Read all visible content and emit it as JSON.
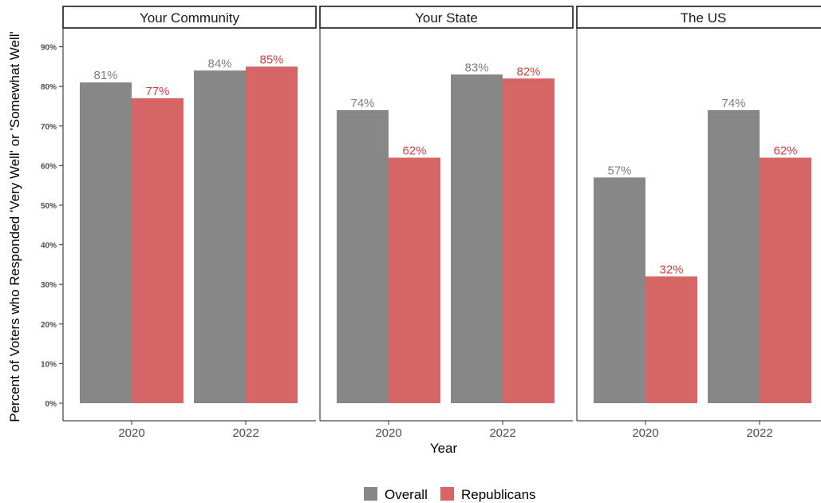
{
  "chart_data": {
    "type": "bar",
    "ylabel": "Percent of Voters who Responded 'Very Well' or 'Somewhat Well'",
    "xlabel": "Year",
    "ylim": [
      0,
      95
    ],
    "yticks": [
      "0%",
      "10%",
      "20%",
      "30%",
      "40%",
      "50%",
      "60%",
      "70%",
      "80%",
      "90%"
    ],
    "categories": [
      "2020",
      "2022"
    ],
    "legend": {
      "position": "bottom"
    },
    "series_colors": {
      "Overall": "#878787",
      "Republicans": "#d66565"
    },
    "label_colors": {
      "Overall": "#7f7f7f",
      "Republicans": "#d24040"
    },
    "series_names": [
      "Overall",
      "Republicans"
    ],
    "panels": [
      {
        "title": "Your Community",
        "series": [
          {
            "name": "Overall",
            "values": [
              81,
              84
            ],
            "labels": [
              "81%",
              "84%"
            ]
          },
          {
            "name": "Republicans",
            "values": [
              77,
              85
            ],
            "labels": [
              "77%",
              "85%"
            ]
          }
        ]
      },
      {
        "title": "Your State",
        "series": [
          {
            "name": "Overall",
            "values": [
              74,
              83
            ],
            "labels": [
              "74%",
              "83%"
            ]
          },
          {
            "name": "Republicans",
            "values": [
              62,
              82
            ],
            "labels": [
              "62%",
              "82%"
            ]
          }
        ]
      },
      {
        "title": "The US",
        "series": [
          {
            "name": "Overall",
            "values": [
              57,
              74
            ],
            "labels": [
              "57%",
              "74%"
            ]
          },
          {
            "name": "Republicans",
            "values": [
              32,
              62
            ],
            "labels": [
              "32%",
              "62%"
            ]
          }
        ]
      }
    ]
  }
}
